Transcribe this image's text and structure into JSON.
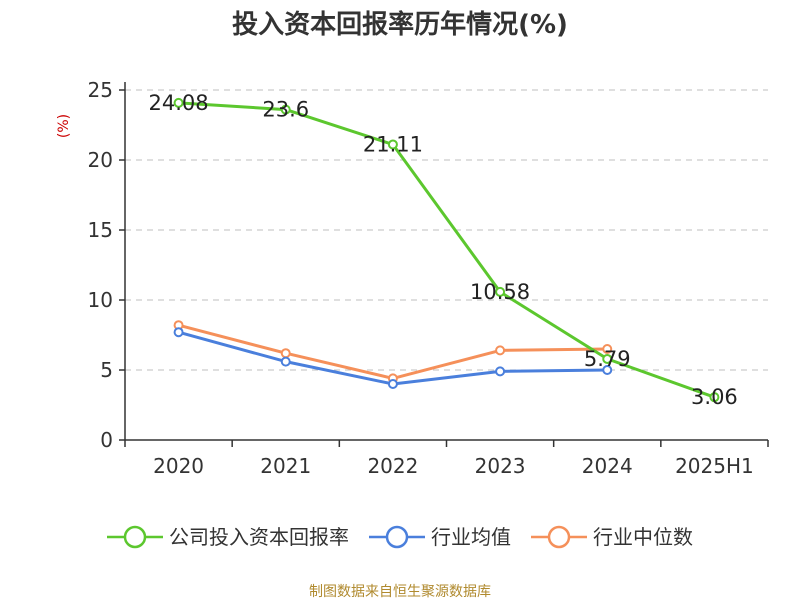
{
  "chart_data": {
    "type": "line",
    "title": "投入资本回报率历年情况(%)",
    "ylabel": "(%)",
    "xlabel": "",
    "categories": [
      "2020",
      "2021",
      "2022",
      "2023",
      "2024",
      "2025H1"
    ],
    "yticks": [
      "0",
      "5",
      "10",
      "15",
      "20",
      "25"
    ],
    "ylim": [
      0,
      25
    ],
    "grid": true,
    "legend_position": "bottom",
    "series": [
      {
        "name": "公司投入资本回报率",
        "color": "#5cc72e",
        "values": [
          24.08,
          23.6,
          21.11,
          10.58,
          5.79,
          3.06
        ],
        "labels": [
          "24.08",
          "23.6",
          "21.11",
          "10.58",
          "5.79",
          "3.06"
        ]
      },
      {
        "name": "行业均值",
        "color": "#4a7fdc",
        "values": [
          7.7,
          5.6,
          4.0,
          4.9,
          5.0,
          null
        ]
      },
      {
        "name": "行业中位数",
        "color": "#f5905a",
        "values": [
          8.2,
          6.2,
          4.4,
          6.4,
          6.5,
          null
        ]
      }
    ]
  },
  "source_text": "制图数据来自恒生聚源数据库"
}
